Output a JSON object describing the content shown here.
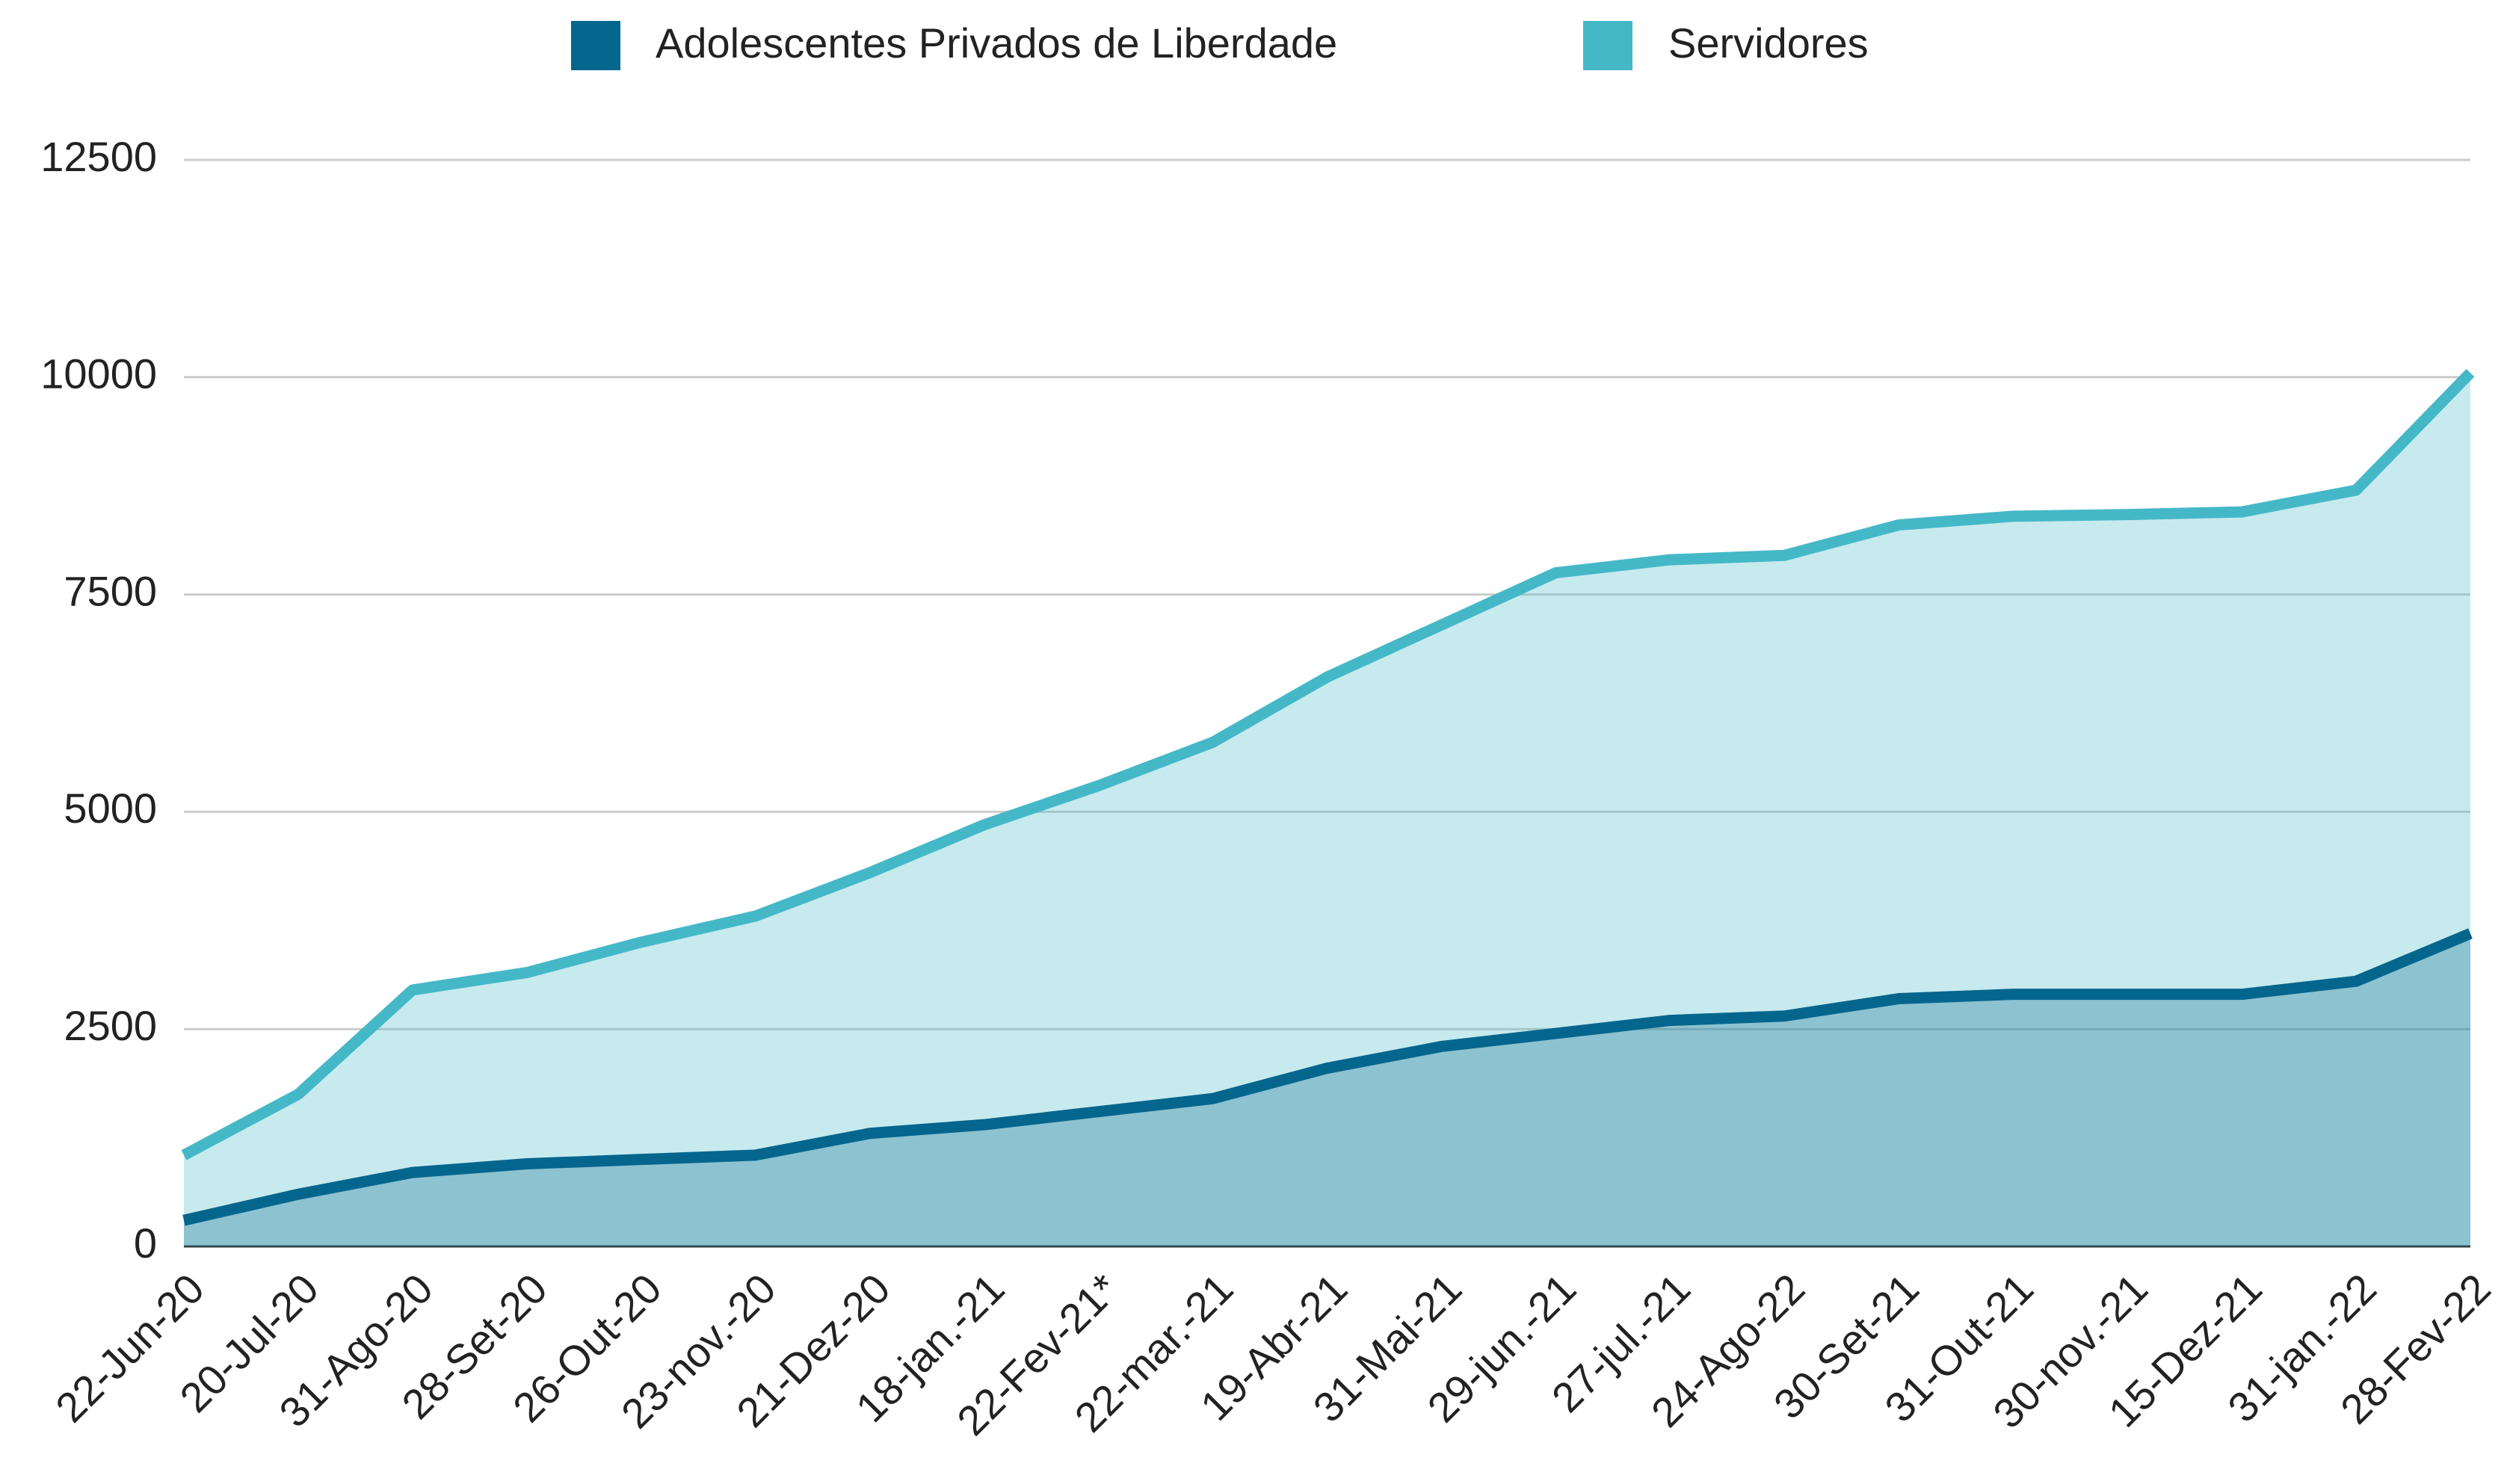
{
  "chart_data": {
    "type": "area",
    "categories": [
      "22-Jun-20",
      "20-Jul-20",
      "31-Ago-20",
      "28-Set-20",
      "26-Out-20",
      "23-nov.-20",
      "21-Dez-20",
      "18-jan.-21",
      "22-Fev-21*",
      "22-mar.-21",
      "19-Abr-21",
      "31-Mai-21",
      "29-jun.-21",
      "27-jul.-21",
      "24-Ago-22",
      "30-Set-21",
      "31-Out-21",
      "30-nov.-21",
      "15-Dez-21",
      "31-jan.-22",
      "28-Fev-22"
    ],
    "series": [
      {
        "name": "Adolescentes Privados de Liberdade",
        "color": "#05668d",
        "values": [
          300,
          600,
          850,
          950,
          1000,
          1050,
          1300,
          1400,
          1550,
          1700,
          2050,
          2300,
          2450,
          2600,
          2650,
          2850,
          2900,
          2900,
          2900,
          3050,
          3600
        ]
      },
      {
        "name": "Servidores",
        "color": "#45b8c8",
        "values": [
          1050,
          1750,
          2950,
          3150,
          3500,
          3800,
          4300,
          4850,
          5300,
          5800,
          6550,
          7150,
          7750,
          7900,
          7950,
          8300,
          8400,
          8420,
          8450,
          8700,
          10050
        ]
      }
    ],
    "ylim": [
      0,
      12500
    ],
    "yticks": [
      0,
      2500,
      5000,
      7500,
      10000,
      12500
    ],
    "grid": true,
    "legend": "top"
  }
}
